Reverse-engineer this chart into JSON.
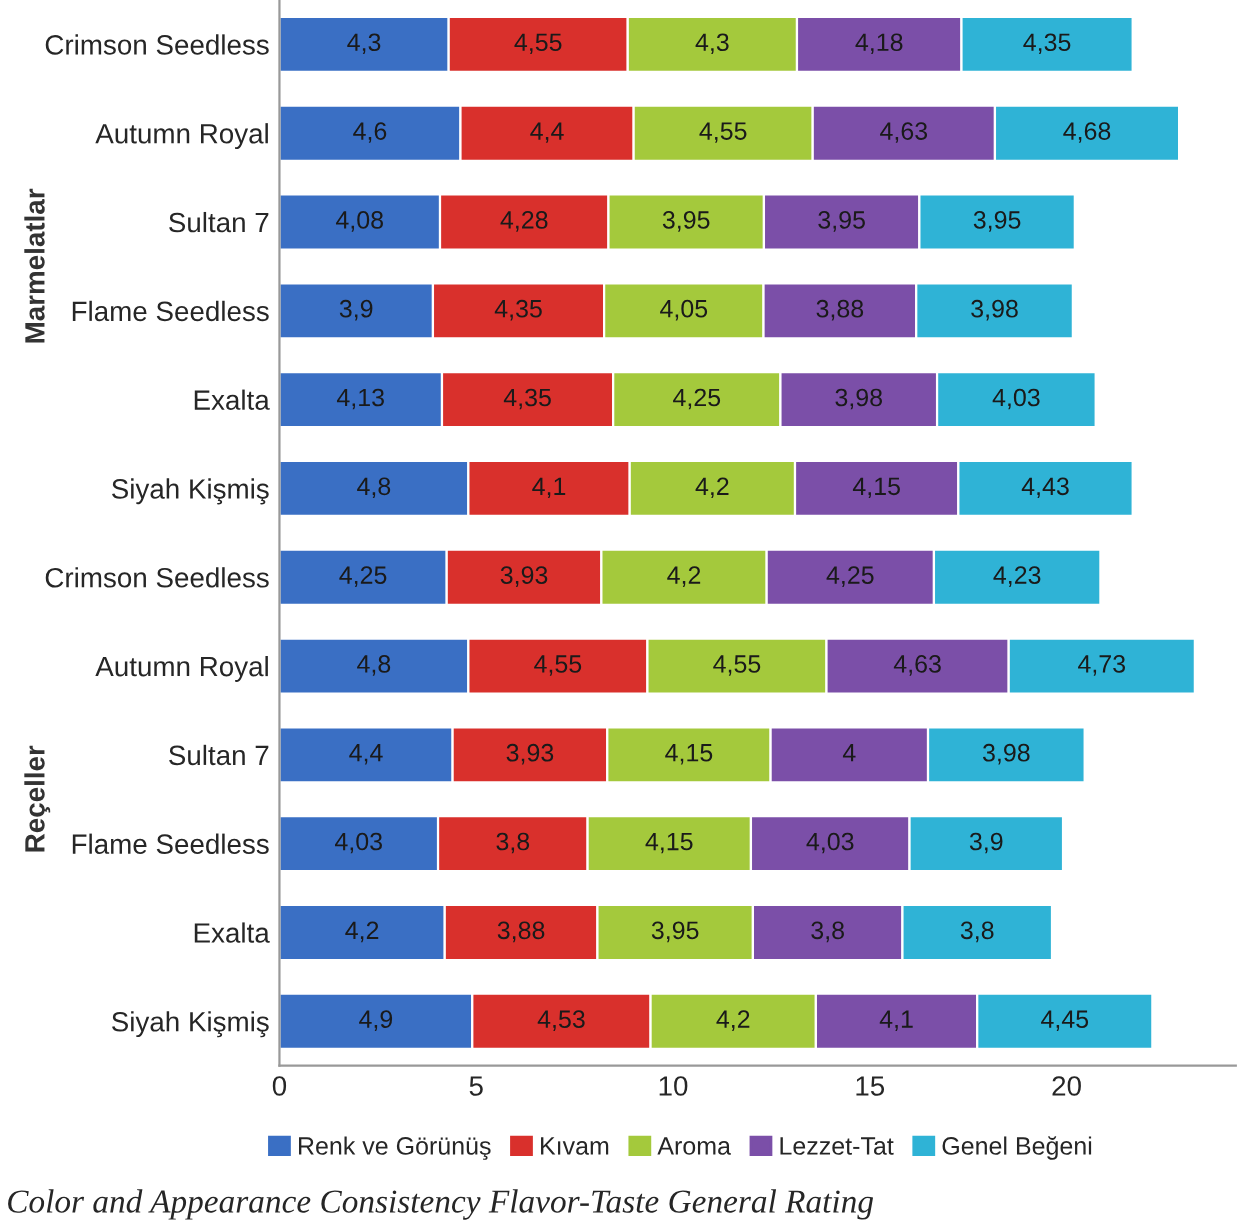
{
  "chart_data": {
    "type": "bar",
    "orientation": "horizontal",
    "stacked": true,
    "categories": [
      "Crimson Seedless",
      "Autumn Royal",
      "Sultan 7",
      "Flame Seedless",
      "Exalta",
      "Siyah Kişmiş",
      "Crimson Seedless",
      "Autumn Royal",
      "Sultan 7",
      "Flame Seedless",
      "Exalta",
      "Siyah Kişmiş"
    ],
    "series": [
      {
        "name": "Renk ve Görünüş",
        "color": "#3a6fc4",
        "values": [
          4.3,
          4.6,
          4.08,
          3.9,
          4.13,
          4.8,
          4.25,
          4.8,
          4.4,
          4.03,
          4.2,
          4.9
        ],
        "value_labels": [
          "4,3",
          "4,6",
          "4,08",
          "3,9",
          "4,13",
          "4,8",
          "4,25",
          "4,8",
          "4,4",
          "4,03",
          "4,2",
          "4,9"
        ]
      },
      {
        "name": "Kıvam",
        "color": "#d9302c",
        "values": [
          4.55,
          4.4,
          4.28,
          4.35,
          4.35,
          4.1,
          3.93,
          4.55,
          3.93,
          3.8,
          3.88,
          4.53
        ],
        "value_labels": [
          "4,55",
          "4,4",
          "4,28",
          "4,35",
          "4,35",
          "4,1",
          "3,93",
          "4,55",
          "3,93",
          "3,8",
          "3,88",
          "4,53"
        ]
      },
      {
        "name": "Aroma",
        "color": "#a4c93c",
        "values": [
          4.3,
          4.55,
          3.95,
          4.05,
          4.25,
          4.2,
          4.2,
          4.55,
          4.15,
          4.15,
          3.95,
          4.2
        ],
        "value_labels": [
          "4,3",
          "4,55",
          "3,95",
          "4,05",
          "4,25",
          "4,2",
          "4,2",
          "4,55",
          "4,15",
          "4,15",
          "3,95",
          "4,2"
        ]
      },
      {
        "name": "Lezzet-Tat",
        "color": "#7b4fa8",
        "values": [
          4.18,
          4.63,
          3.95,
          3.88,
          3.98,
          4.15,
          4.25,
          4.63,
          4,
          4.03,
          3.8,
          4.1
        ],
        "value_labels": [
          "4,18",
          "4,63",
          "3,95",
          "3,88",
          "3,98",
          "4,15",
          "4,25",
          "4,63",
          "4",
          "4,03",
          "3,8",
          "4,1"
        ]
      },
      {
        "name": "Genel Beğeni",
        "color": "#2fb3d6",
        "values": [
          4.35,
          4.68,
          3.95,
          3.98,
          4.03,
          4.43,
          4.23,
          4.73,
          3.98,
          3.9,
          3.8,
          4.45
        ],
        "value_labels": [
          "4,35",
          "4,68",
          "3,95",
          "3,98",
          "4,03",
          "4,43",
          "4,23",
          "4,73",
          "3,98",
          "3,9",
          "3,8",
          "4,45"
        ]
      }
    ],
    "xlim": [
      0,
      24.3
    ],
    "xticks": [
      0,
      5,
      10,
      15,
      20
    ],
    "grid": false,
    "legend": "bottom",
    "annotations": [
      "Marmelatlar",
      "Reçeller",
      "Color and Appearance Consistency Flavor-Taste General Rating"
    ]
  }
}
